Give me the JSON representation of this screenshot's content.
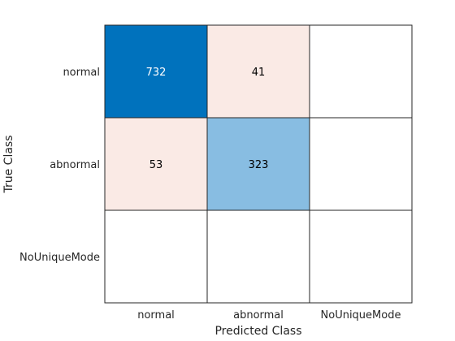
{
  "chart_data": {
    "type": "heatmap",
    "title": "",
    "xlabel": "Predicted Class",
    "ylabel": "True Class",
    "x_categories": [
      "normal",
      "abnormal",
      "NoUniqueMode"
    ],
    "y_categories": [
      "normal",
      "abnormal",
      "NoUniqueMode"
    ],
    "cells": [
      [
        732,
        41,
        null
      ],
      [
        53,
        323,
        null
      ],
      [
        null,
        null,
        null
      ]
    ],
    "colors": {
      "high": "#0072bd",
      "mid": "#88bde2",
      "low": "#faeae5",
      "empty": "#ffffff",
      "grid": "#262626",
      "text_dark": "#000000",
      "text_light": "#ffffff"
    }
  }
}
